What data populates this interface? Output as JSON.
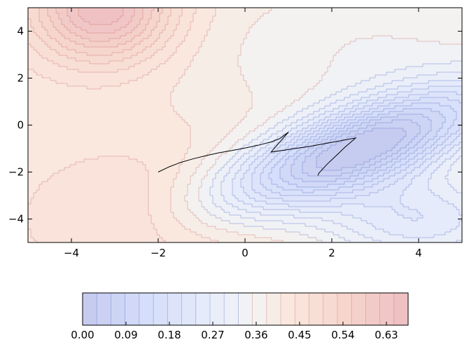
{
  "chart_data": {
    "type": "contour",
    "title": "",
    "xlabel": "",
    "ylabel": "",
    "xlim": [
      -5,
      5
    ],
    "ylim": [
      -5,
      5
    ],
    "x_ticks": [
      {
        "value": -4,
        "label": "−4"
      },
      {
        "value": -2,
        "label": "−2"
      },
      {
        "value": 0,
        "label": "0"
      },
      {
        "value": 2,
        "label": "2"
      },
      {
        "value": 4,
        "label": "4"
      }
    ],
    "y_ticks": [
      {
        "value": 4,
        "label": "4"
      },
      {
        "value": 2,
        "label": "2"
      },
      {
        "value": 0,
        "label": "0"
      },
      {
        "value": -2,
        "label": "−2"
      },
      {
        "value": -4,
        "label": "−4"
      }
    ],
    "grid": false,
    "colormap": "coolwarm",
    "contour_range": [
      0.0,
      0.675
    ],
    "colorbar": {
      "orientation": "horizontal",
      "placement": "bottom",
      "levels": 23,
      "ticks": [
        {
          "value": 0.0,
          "label": "0.00"
        },
        {
          "value": 0.09,
          "label": "0.09"
        },
        {
          "value": 0.18,
          "label": "0.18"
        },
        {
          "value": 0.27,
          "label": "0.27"
        },
        {
          "value": 0.36,
          "label": "0.36"
        },
        {
          "value": 0.45,
          "label": "0.45"
        },
        {
          "value": 0.54,
          "label": "0.54"
        },
        {
          "value": 0.63,
          "label": "0.63"
        }
      ]
    },
    "path": {
      "color": "#000000",
      "points": [
        [
          -2.0,
          -2.0
        ],
        [
          -1.75,
          -1.78
        ],
        [
          -1.5,
          -1.6
        ],
        [
          -1.2,
          -1.44
        ],
        [
          -0.9,
          -1.3
        ],
        [
          -0.6,
          -1.18
        ],
        [
          -0.3,
          -1.08
        ],
        [
          0.0,
          -0.98
        ],
        [
          0.3,
          -0.86
        ],
        [
          0.6,
          -0.72
        ],
        [
          0.8,
          -0.58
        ],
        [
          1.0,
          -0.3
        ],
        [
          0.6,
          -1.15
        ],
        [
          1.5,
          -0.9
        ],
        [
          2.55,
          -0.55
        ],
        [
          2.3,
          -0.95
        ],
        [
          2.1,
          -1.3
        ],
        [
          1.9,
          -1.65
        ],
        [
          1.7,
          -2.05
        ],
        [
          1.68,
          -2.15
        ]
      ]
    }
  }
}
